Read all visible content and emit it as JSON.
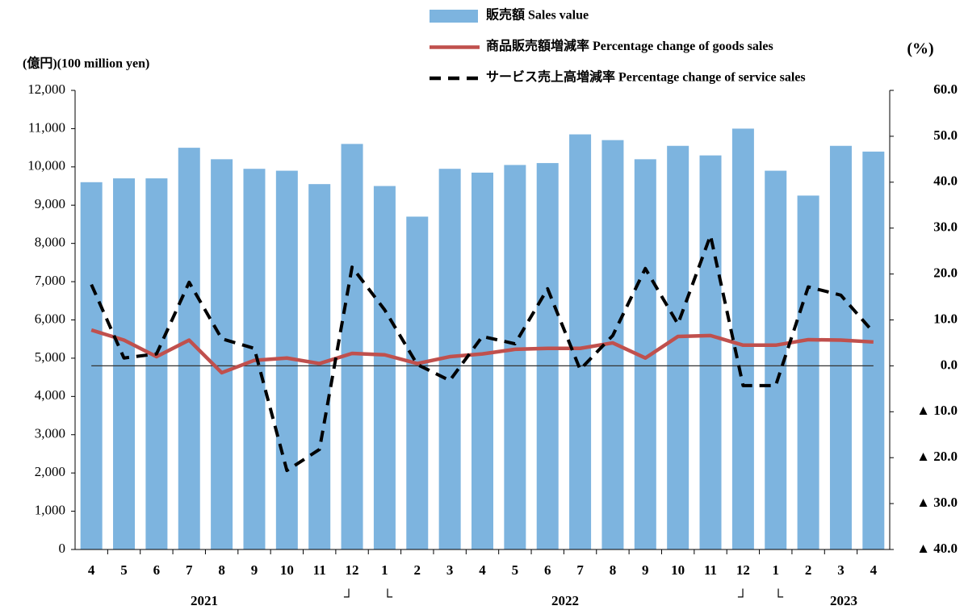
{
  "chart_data": {
    "type": "bar_line",
    "y_label": "(億円)(100 million yen)",
    "y2_label": "(%)",
    "categories": [
      "4",
      "5",
      "6",
      "7",
      "8",
      "9",
      "10",
      "11",
      "12",
      "1",
      "2",
      "3",
      "4",
      "5",
      "6",
      "7",
      "8",
      "9",
      "10",
      "11",
      "12",
      "1",
      "2",
      "3",
      "4"
    ],
    "x_group_labels": [
      "2021",
      "2022",
      "2023"
    ],
    "year_break_marks": [
      "┘",
      "└"
    ],
    "legend": "top",
    "zero_line": true,
    "ylim": [
      0,
      12000
    ],
    "yticks": [
      0,
      {
        "value": 1000,
        "label": "1,000"
      },
      {
        "value": 2000,
        "label": "2,000"
      },
      {
        "value": 3000,
        "label": "3,000"
      },
      {
        "value": 4000,
        "label": "4,000"
      },
      {
        "value": 5000,
        "label": "5,000"
      },
      {
        "value": 6000,
        "label": "6,000"
      },
      {
        "value": 7000,
        "label": "7,000"
      },
      {
        "value": 8000,
        "label": "8,000"
      },
      {
        "value": 9000,
        "label": "9,000"
      },
      {
        "value": 10000,
        "label": "10,000"
      },
      {
        "value": 11000,
        "label": "11,000"
      },
      {
        "value": 12000,
        "label": "12,000"
      }
    ],
    "y2lim": [
      -40,
      60
    ],
    "y2ticks": [
      {
        "value": -40,
        "label": "▲ 40.0"
      },
      {
        "value": -30,
        "label": "▲ 30.0"
      },
      {
        "value": -20,
        "label": "▲ 20.0"
      },
      {
        "value": -10,
        "label": "▲ 10.0"
      },
      {
        "value": 0,
        "label": "0.0"
      },
      {
        "value": 10,
        "label": "10.0"
      },
      {
        "value": 20,
        "label": "20.0"
      },
      {
        "value": 30,
        "label": "30.0"
      },
      {
        "value": 40,
        "label": "40.0"
      },
      {
        "value": 50,
        "label": "50.0"
      },
      {
        "value": 60,
        "label": "60.0"
      }
    ],
    "series": [
      {
        "name": "販売額 Sales value",
        "kind": "bar",
        "color": "#7db4df",
        "values": [
          9600,
          9700,
          9700,
          10500,
          10200,
          9950,
          9900,
          9550,
          10600,
          9500,
          8700,
          9950,
          9850,
          10050,
          10100,
          10850,
          10700,
          10200,
          10550,
          10300,
          11000,
          9900,
          9250,
          10550,
          10400
        ]
      },
      {
        "name": "商品販売額増減率 Percentage change of goods sales",
        "kind": "line",
        "axis": "y2",
        "color": "#c0504d",
        "dash": false,
        "values": [
          7.8,
          5.6,
          2.0,
          5.6,
          -1.5,
          1.2,
          1.7,
          0.5,
          2.7,
          2.4,
          0.5,
          2.0,
          2.6,
          3.6,
          3.8,
          3.8,
          5.0,
          1.7,
          6.4,
          6.6,
          4.5,
          4.5,
          5.7,
          5.6,
          5.2
        ]
      },
      {
        "name": "サービス売上高増減率 Percentage change of service sales",
        "kind": "line",
        "axis": "y2",
        "color": "#000000",
        "dash": true,
        "values": [
          17.7,
          1.7,
          2.6,
          18.2,
          5.9,
          3.8,
          -22.8,
          -18.2,
          21.5,
          12.2,
          0.3,
          -3.2,
          6.4,
          4.8,
          16.8,
          -0.8,
          6.6,
          21.2,
          9.1,
          28.4,
          -4.3,
          -4.3,
          17.2,
          15.4,
          7.3
        ]
      }
    ]
  }
}
